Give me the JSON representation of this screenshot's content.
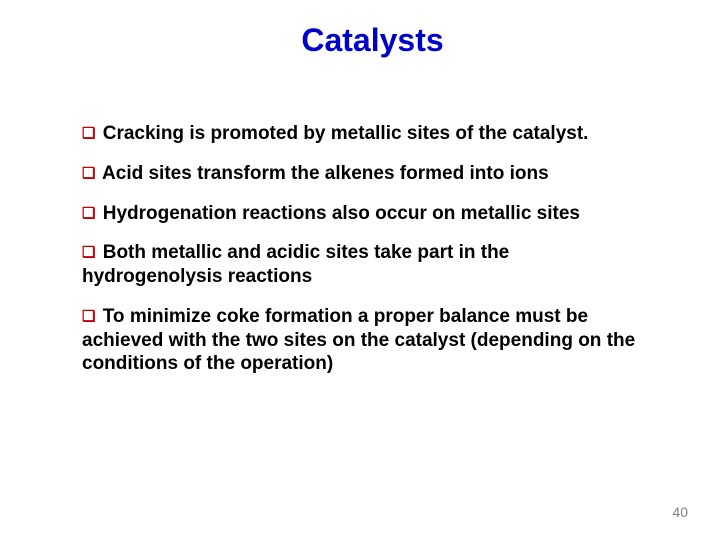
{
  "colors": {
    "title": "#0000cc",
    "bullet_marker": "#c00000",
    "text": "#000000",
    "pagenum": "#808080",
    "background": "#ffffff"
  },
  "typography": {
    "title_fontsize": 32,
    "body_fontsize": 19,
    "pagenum_fontsize": 14,
    "font_family": "Arial",
    "body_bold": true
  },
  "title": "Catalysts",
  "bullets": [
    "Cracking is promoted by metallic sites of the catalyst.",
    "Acid sites transform the alkenes formed into ions",
    "Hydrogenation reactions also occur on metallic sites",
    "Both metallic and acidic sites take part in the hydrogenolysis reactions",
    "To minimize coke formation a proper balance must be achieved with the two sites on the catalyst (depending on the conditions of the operation)"
  ],
  "bullet_marker": "❑",
  "page_number": "40"
}
